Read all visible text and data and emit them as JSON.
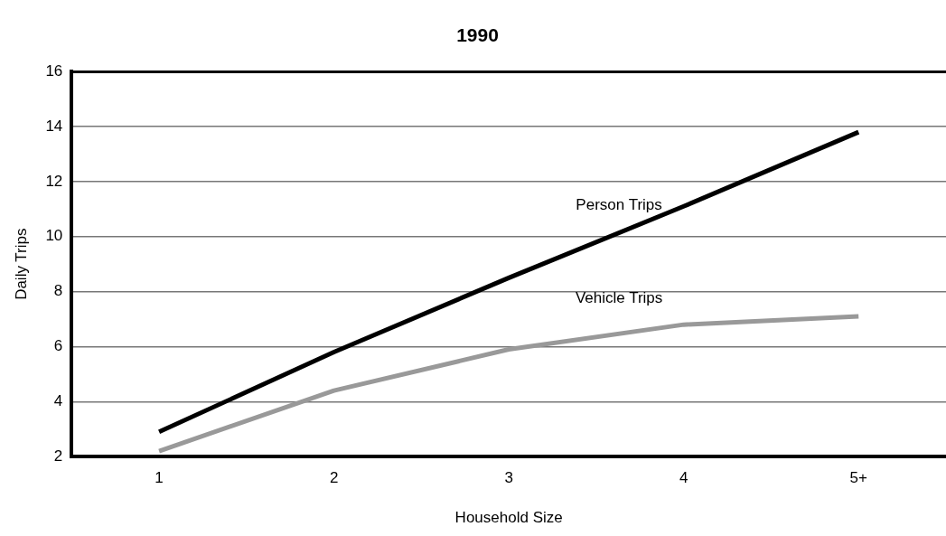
{
  "chart_data": {
    "type": "line",
    "title": "1990",
    "xlabel": "Household Size",
    "ylabel": "Daily Trips",
    "categories": [
      "1",
      "2",
      "3",
      "4",
      "5+"
    ],
    "series": [
      {
        "name": "Person Trips",
        "color": "#000000",
        "values": [
          2.9,
          5.8,
          8.5,
          11.1,
          13.8
        ]
      },
      {
        "name": "Vehicle Trips",
        "color": "#999999",
        "values": [
          2.2,
          4.4,
          5.9,
          6.8,
          7.1
        ]
      }
    ],
    "ylim": [
      2,
      16
    ],
    "yticks": [
      2,
      4,
      6,
      8,
      10,
      12,
      14,
      16
    ],
    "grid": "y",
    "marker": "none"
  }
}
